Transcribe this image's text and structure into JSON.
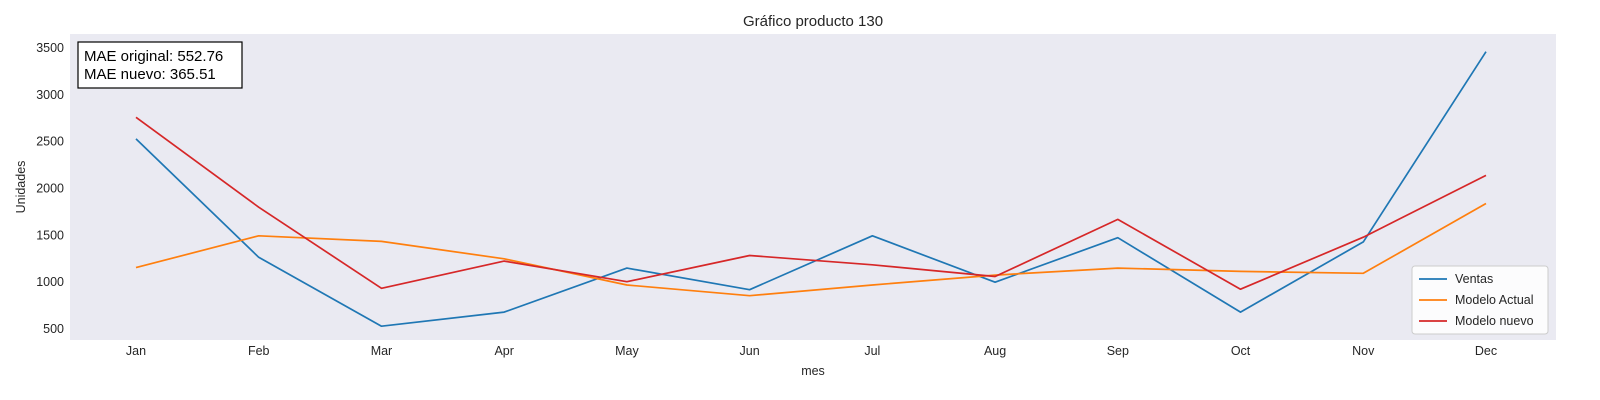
{
  "chart_data": {
    "type": "line",
    "title": "Gráfico producto 130",
    "xlabel": "mes",
    "ylabel": "Unidades",
    "categories": [
      "Jan",
      "Feb",
      "Mar",
      "Apr",
      "May",
      "Jun",
      "Jul",
      "Aug",
      "Sep",
      "Oct",
      "Nov",
      "Dec"
    ],
    "yticks": [
      500,
      1000,
      1500,
      2000,
      2500,
      3000,
      3500
    ],
    "ylim": [
      400,
      3600
    ],
    "grid": false,
    "legend_position": "lower-right",
    "series": [
      {
        "name": "Ventas",
        "color": "#1f77b4",
        "values": [
          2530,
          1265,
          530,
          680,
          1150,
          920,
          1495,
          1000,
          1475,
          680,
          1430,
          3460
        ]
      },
      {
        "name": "Modelo Actual",
        "color": "#ff7f0e",
        "values": [
          1155,
          1495,
          1435,
          1250,
          970,
          855,
          970,
          1075,
          1150,
          1115,
          1095,
          1840
        ]
      },
      {
        "name": "Modelo nuevo",
        "color": "#d62728",
        "values": [
          2760,
          1800,
          935,
          1225,
          1005,
          1285,
          1185,
          1060,
          1670,
          925,
          1480,
          2140
        ]
      }
    ],
    "annotation": {
      "line1": "MAE original: 552.76",
      "line2": "MAE nuevo: 365.51"
    }
  }
}
